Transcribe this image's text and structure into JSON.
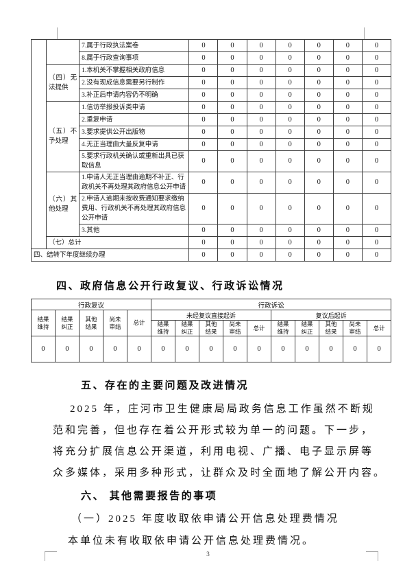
{
  "page": {
    "number": "3"
  },
  "table1": {
    "groups": [
      {
        "category": "",
        "items": [
          "7.属于行政执法案卷",
          "8.属于行政查询事项"
        ]
      },
      {
        "category": "（四）无法提供",
        "items": [
          "1.本机关不掌握相关政府信息",
          "2.没有现成信息需要另行制作",
          "3.补正后申请内容仍不明确"
        ]
      },
      {
        "category": "（五）不予处理",
        "items": [
          "1.信访举报投诉类申请",
          "2.重复申请",
          "3.要求提供公开出版物",
          "4.无正当理由大量反复申请",
          "5.要求行政机关确认或重新出具已获取信息"
        ]
      },
      {
        "category": "（六）其他处理",
        "items": [
          "1.申请人无正当理由逾期不补正、行政机关不再处理其政府信息公开申请",
          "2.申请人逾期未按收费通知要求缴纳费用、行政机关不再处理其政府信息公开申请",
          "3.其他"
        ]
      }
    ],
    "total_label": "（七）总计",
    "carryover_label": "四、结转下年度继续办理",
    "value_matrix": [
      [
        "0",
        "0",
        "0",
        "0",
        "0",
        "0",
        "0"
      ],
      [
        "0",
        "0",
        "0",
        "0",
        "0",
        "0",
        "0"
      ],
      [
        "0",
        "0",
        "0",
        "0",
        "0",
        "0",
        "0"
      ],
      [
        "0",
        "0",
        "0",
        "0",
        "0",
        "0",
        "0"
      ],
      [
        "0",
        "0",
        "0",
        "0",
        "0",
        "0",
        "0"
      ],
      [
        "0",
        "0",
        "0",
        "0",
        "0",
        "0",
        "0"
      ],
      [
        "0",
        "0",
        "0",
        "0",
        "0",
        "0",
        "0"
      ],
      [
        "0",
        "0",
        "0",
        "0",
        "0",
        "0",
        "0"
      ],
      [
        "0",
        "0",
        "0",
        "0",
        "0",
        "0",
        "0"
      ],
      [
        "0",
        "0",
        "0",
        "0",
        "0",
        "0",
        "0"
      ],
      [
        "0",
        "0",
        "0",
        "0",
        "0",
        "0",
        "0"
      ],
      [
        "0",
        "0",
        "0",
        "0",
        "0",
        "0",
        "0"
      ],
      [
        "0",
        "0",
        "0",
        "0",
        "0",
        "0",
        "0"
      ],
      [
        "0",
        "0",
        "0",
        "0",
        "0",
        "0",
        "0"
      ],
      [
        "0",
        "0",
        "0",
        "0",
        "0",
        "0",
        "0"
      ]
    ]
  },
  "section4": {
    "title": "四、政府信息公开行政复议、行政诉讼情况"
  },
  "table2": {
    "col_groups": [
      {
        "label": "行政复议",
        "subgroups": [
          {
            "label": "",
            "leaf": [
              "结果维持",
              "结果纠正",
              "其他结果",
              "尚未审结",
              "总计"
            ]
          }
        ]
      },
      {
        "label": "行政诉讼",
        "subgroups": [
          {
            "label": "未经复议直接起诉",
            "leaf": [
              "结果维持",
              "结果纠正",
              "其他结果",
              "尚未审结",
              "总计"
            ]
          },
          {
            "label": "复议后起诉",
            "leaf": [
              "结果维持",
              "结果纠正",
              "其他结果",
              "尚未审结",
              "总计"
            ]
          }
        ]
      }
    ],
    "values": [
      "0",
      "0",
      "0",
      "0",
      "0",
      "0",
      "0",
      "0",
      "0",
      "0",
      "0",
      "0",
      "0",
      "0",
      "0"
    ]
  },
  "section5": {
    "title": "五、存在的主要问题及改进情况",
    "paragraph_lines": [
      "2025 年，庄河市卫生健康局局政务信息工作虽然不断规",
      "范和完善，但也存在着公开形式较为单一的问题。下一步，",
      "将充分扩展信息公开渠道，利用电视、广播、电子显示屏等",
      "众多媒体，采用多种形式，让群众及时全面地了解公开内容。"
    ]
  },
  "section6": {
    "title": "六、 其他需要报告的事项",
    "lines": [
      "（一）2025 年度收取依申请公开信息处理费情况",
      "本单位未有收取依申请公开信息处理费情况。"
    ]
  },
  "colors": {
    "border": "#3d3d3d",
    "mark": "#a8a8a8",
    "text": "#161616"
  }
}
